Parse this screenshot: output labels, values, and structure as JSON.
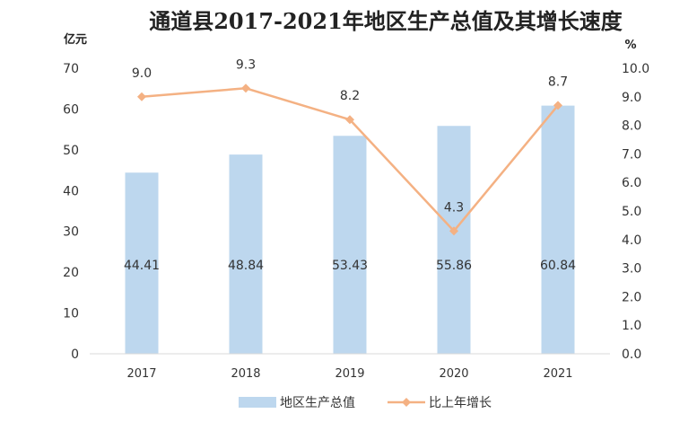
{
  "chart_data": {
    "type": "bar",
    "title": "通道县2017-2021年地区生产总值及其增长速度",
    "categories": [
      "2017",
      "2018",
      "2019",
      "2020",
      "2021"
    ],
    "series": [
      {
        "name": "地区生产总值",
        "type": "bar",
        "axis": "left",
        "values": [
          44.41,
          48.84,
          53.43,
          55.86,
          60.84
        ],
        "labels": [
          "44.41",
          "48.84",
          "53.43",
          "55.86",
          "60.84"
        ],
        "color": "#bdd7ee"
      },
      {
        "name": "比上年增长",
        "type": "line",
        "axis": "right",
        "values": [
          9.0,
          9.3,
          8.2,
          4.3,
          8.7
        ],
        "labels": [
          "9.0",
          "9.3",
          "8.2",
          "4.3",
          "8.7"
        ],
        "color": "#f4b183"
      }
    ],
    "yleft": {
      "label": "亿元",
      "range": [
        0,
        70
      ],
      "ticks": [
        "0",
        "10",
        "20",
        "30",
        "40",
        "50",
        "60",
        "70"
      ]
    },
    "yright": {
      "label": "%",
      "range": [
        0,
        10
      ],
      "ticks": [
        "0.0",
        "1.0",
        "2.0",
        "3.0",
        "4.0",
        "5.0",
        "6.0",
        "7.0",
        "8.0",
        "9.0",
        "10.0"
      ]
    },
    "grid": false,
    "legend_position": "bottom"
  }
}
